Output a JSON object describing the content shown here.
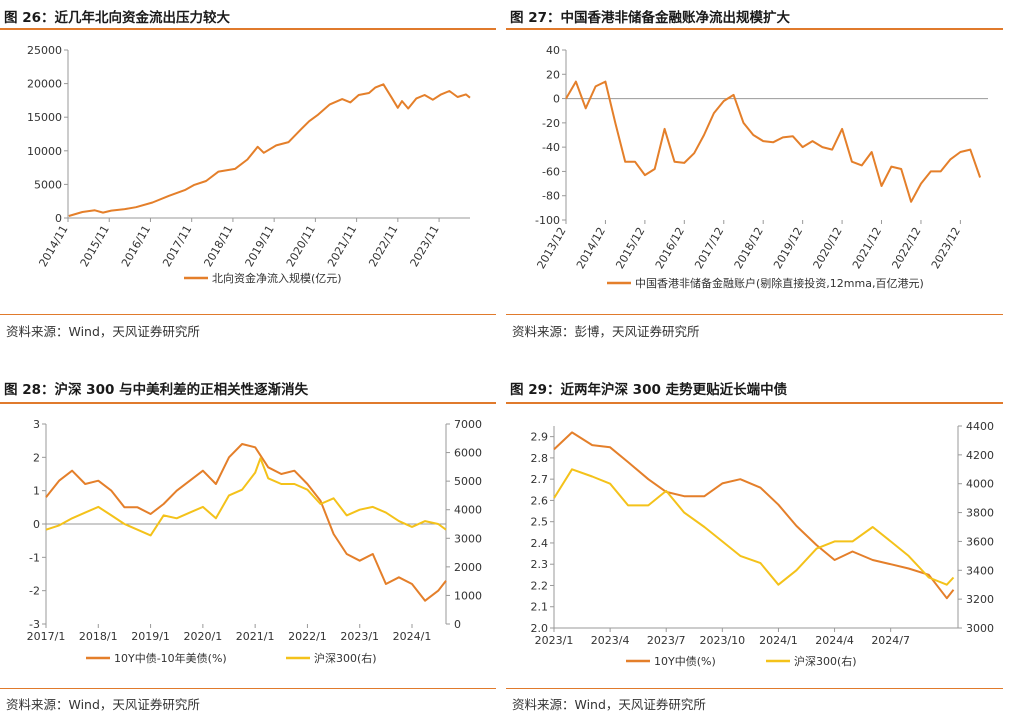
{
  "colors": {
    "orange": "#e47f2a",
    "yellow": "#f4c21a",
    "rule": "#e07a2c",
    "axis": "#999999"
  },
  "panels": [
    {
      "title": "图 26：近几年北向资金流出压力较大",
      "source": "资料来源：Wind，天风证券研究所"
    },
    {
      "title": "图 27：中国香港非储备金融账净流出规模扩大",
      "source": "资料来源：彭博，天风证券研究所"
    },
    {
      "title": "图 28：沪深 300 与中美利差的正相关性逐渐消失",
      "source": "资料来源：Wind，天风证券研究所"
    },
    {
      "title": "图 29：近两年沪深 300 走势更贴近长端中债",
      "source": "资料来源：Wind，天风证券研究所"
    }
  ],
  "chart_data": [
    {
      "type": "line",
      "xlabels": [
        "2014/11",
        "2015/11",
        "2016/11",
        "2017/11",
        "2018/11",
        "2019/11",
        "2020/11",
        "2021/11",
        "2022/11",
        "2023/11"
      ],
      "y_ticks": [
        0,
        5000,
        10000,
        15000,
        20000,
        25000
      ],
      "ylim": [
        0,
        25000
      ],
      "series": [
        {
          "name": "北向资金净流入规模(亿元)",
          "color": "orange",
          "x": [
            2014.87,
            2015.2,
            2015.5,
            2015.7,
            2015.9,
            2016.2,
            2016.5,
            2016.9,
            2017.3,
            2017.7,
            2017.9,
            2018.2,
            2018.5,
            2018.9,
            2019.2,
            2019.45,
            2019.6,
            2019.9,
            2020.2,
            2020.5,
            2020.7,
            2020.9,
            2021.2,
            2021.5,
            2021.7,
            2021.9,
            2022.15,
            2022.3,
            2022.5,
            2022.7,
            2022.85,
            2022.95,
            2023.1,
            2023.3,
            2023.5,
            2023.7,
            2023.9,
            2024.1,
            2024.3,
            2024.5,
            2024.6
          ],
          "y": [
            300,
            900,
            1150,
            800,
            1100,
            1300,
            1600,
            2300,
            3300,
            4200,
            4900,
            5500,
            6900,
            7300,
            8700,
            10600,
            9700,
            10800,
            11300,
            13200,
            14400,
            15300,
            16900,
            17700,
            17200,
            18300,
            18600,
            19400,
            19900,
            17900,
            16400,
            17400,
            16300,
            17800,
            18300,
            17600,
            18400,
            18900,
            18000,
            18400,
            17900
          ]
        }
      ]
    },
    {
      "type": "line",
      "xlabels": [
        "2013/12",
        "2014/12",
        "2015/12",
        "2016/12",
        "2017/12",
        "2018/12",
        "2019/12",
        "2020/12",
        "2021/12",
        "2022/12",
        "2023/12"
      ],
      "y_ticks": [
        -100,
        -80,
        -60,
        -40,
        -20,
        0,
        20,
        40
      ],
      "ylim": [
        -100,
        40
      ],
      "series": [
        {
          "name": "中国香港非储备金融账户(剔除直接投资,12mma,百亿港元)",
          "color": "orange",
          "x": [
            2013.0,
            2013.25,
            2013.5,
            2013.75,
            2014.0,
            2014.25,
            2014.5,
            2014.75,
            2015.0,
            2015.25,
            2015.5,
            2015.75,
            2016.0,
            2016.25,
            2016.5,
            2016.75,
            2017.0,
            2017.25,
            2017.5,
            2017.75,
            2018.0,
            2018.25,
            2018.5,
            2018.75,
            2019.0,
            2019.25,
            2019.5,
            2019.75,
            2020.0,
            2020.25,
            2020.5,
            2020.75,
            2021.0,
            2021.25,
            2021.5,
            2021.75,
            2022.0,
            2022.25,
            2022.5,
            2022.75,
            2023.0,
            2023.25,
            2023.5
          ],
          "y": [
            0,
            14,
            -8,
            10,
            14,
            -20,
            -52,
            -52,
            -63,
            -58,
            -25,
            -52,
            -53,
            -45,
            -30,
            -12,
            -2,
            3,
            -20,
            -30,
            -35,
            -36,
            -32,
            -31,
            -40,
            -35,
            -40,
            -42,
            -25,
            -52,
            -55,
            -44,
            -72,
            -56,
            -58,
            -85,
            -70,
            -60,
            -60,
            -50,
            -44,
            -42,
            -65
          ]
        }
      ]
    },
    {
      "type": "line",
      "xlabels": [
        "2017/1",
        "2018/1",
        "2019/1",
        "2020/1",
        "2021/1",
        "2022/1",
        "2023/1",
        "2024/1"
      ],
      "y_ticks_left": [
        -3,
        -2,
        -1,
        0,
        1,
        2,
        3
      ],
      "ylim_left": [
        -3,
        3
      ],
      "y_ticks_right": [
        0,
        1000,
        2000,
        3000,
        4000,
        5000,
        6000,
        7000
      ],
      "ylim_right": [
        0,
        7000
      ],
      "series": [
        {
          "name": "10Y中债-10年美债(%)",
          "color": "orange",
          "axis": "left",
          "x": [
            2017.0,
            2017.25,
            2017.5,
            2017.75,
            2018.0,
            2018.25,
            2018.5,
            2018.75,
            2019.0,
            2019.25,
            2019.5,
            2019.75,
            2020.0,
            2020.25,
            2020.5,
            2020.75,
            2021.0,
            2021.25,
            2021.5,
            2021.75,
            2022.0,
            2022.25,
            2022.5,
            2022.75,
            2023.0,
            2023.25,
            2023.5,
            2023.75,
            2024.0,
            2024.25,
            2024.5,
            2024.65
          ],
          "y": [
            0.8,
            1.3,
            1.6,
            1.2,
            1.3,
            1.0,
            0.5,
            0.5,
            0.3,
            0.6,
            1.0,
            1.3,
            1.6,
            1.2,
            2.0,
            2.4,
            2.3,
            1.7,
            1.5,
            1.6,
            1.2,
            0.7,
            -0.3,
            -0.9,
            -1.1,
            -0.9,
            -1.8,
            -1.6,
            -1.8,
            -2.3,
            -2.0,
            -1.7
          ]
        },
        {
          "name": "沪深300(右)",
          "color": "yellow",
          "axis": "right",
          "x": [
            2017.0,
            2017.25,
            2017.5,
            2017.75,
            2018.0,
            2018.25,
            2018.5,
            2018.75,
            2019.0,
            2019.25,
            2019.5,
            2019.75,
            2020.0,
            2020.25,
            2020.5,
            2020.75,
            2021.0,
            2021.1,
            2021.25,
            2021.5,
            2021.75,
            2022.0,
            2022.25,
            2022.5,
            2022.75,
            2023.0,
            2023.25,
            2023.5,
            2023.75,
            2024.0,
            2024.25,
            2024.5,
            2024.65
          ],
          "y": [
            3300,
            3450,
            3700,
            3900,
            4100,
            3800,
            3500,
            3300,
            3100,
            3800,
            3700,
            3900,
            4100,
            3700,
            4500,
            4700,
            5300,
            5800,
            5100,
            4900,
            4900,
            4700,
            4200,
            4400,
            3800,
            4000,
            4100,
            3900,
            3600,
            3400,
            3600,
            3500,
            3300
          ]
        }
      ]
    },
    {
      "type": "line",
      "xlabels": [
        "2023/1",
        "2023/4",
        "2023/7",
        "2023/10",
        "2024/1",
        "2024/4",
        "2024/7"
      ],
      "y_ticks_left": [
        2.0,
        2.1,
        2.2,
        2.3,
        2.4,
        2.5,
        2.6,
        2.7,
        2.8,
        2.9
      ],
      "ylim_left": [
        2.0,
        2.95
      ],
      "y_ticks_right": [
        3000,
        3200,
        3400,
        3600,
        3800,
        4000,
        4200,
        4400
      ],
      "ylim_right": [
        3000,
        4400
      ],
      "series": [
        {
          "name": "10Y中债(%)",
          "color": "orange",
          "axis": "left",
          "x": [
            2023.0,
            2023.08,
            2023.17,
            2023.25,
            2023.33,
            2023.42,
            2023.5,
            2023.58,
            2023.67,
            2023.75,
            2023.83,
            2023.92,
            2024.0,
            2024.08,
            2024.17,
            2024.25,
            2024.33,
            2024.42,
            2024.5,
            2024.58,
            2024.67,
            2024.75,
            2024.78
          ],
          "y": [
            2.84,
            2.92,
            2.86,
            2.85,
            2.78,
            2.7,
            2.64,
            2.62,
            2.62,
            2.68,
            2.7,
            2.66,
            2.58,
            2.48,
            2.39,
            2.32,
            2.36,
            2.32,
            2.3,
            2.28,
            2.25,
            2.14,
            2.18
          ]
        },
        {
          "name": "沪深300(右)",
          "color": "yellow",
          "axis": "right",
          "x": [
            2023.0,
            2023.08,
            2023.17,
            2023.25,
            2023.33,
            2023.42,
            2023.5,
            2023.58,
            2023.67,
            2023.75,
            2023.83,
            2023.92,
            2024.0,
            2024.08,
            2024.17,
            2024.25,
            2024.33,
            2024.42,
            2024.5,
            2024.58,
            2024.67,
            2024.75,
            2024.78
          ],
          "y": [
            3900,
            4100,
            4050,
            4000,
            3850,
            3850,
            3950,
            3800,
            3700,
            3600,
            3500,
            3450,
            3300,
            3400,
            3550,
            3600,
            3600,
            3700,
            3600,
            3500,
            3350,
            3300,
            3350
          ]
        }
      ]
    }
  ]
}
